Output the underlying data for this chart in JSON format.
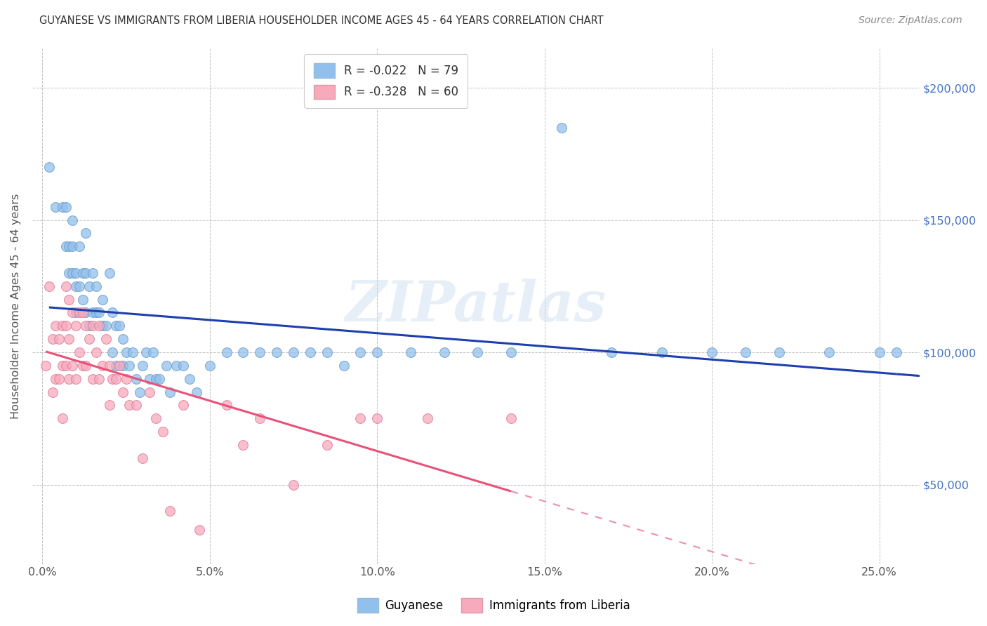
{
  "title": "GUYANESE VS IMMIGRANTS FROM LIBERIA HOUSEHOLDER INCOME AGES 45 - 64 YEARS CORRELATION CHART",
  "source": "Source: ZipAtlas.com",
  "ylabel": "Householder Income Ages 45 - 64 years",
  "xlabel_ticks": [
    "0.0%",
    "5.0%",
    "10.0%",
    "15.0%",
    "20.0%",
    "25.0%"
  ],
  "xlabel_vals": [
    0.0,
    0.05,
    0.1,
    0.15,
    0.2,
    0.25
  ],
  "right_ytick_labels": [
    "$50,000",
    "$100,000",
    "$150,000",
    "$200,000"
  ],
  "right_ytick_vals": [
    50000,
    100000,
    150000,
    200000
  ],
  "xlim": [
    -0.003,
    0.262
  ],
  "ylim": [
    20000,
    215000
  ],
  "blue_R": "-0.022",
  "blue_N": "79",
  "pink_R": "-0.328",
  "pink_N": "60",
  "blue_color": "#92C0EC",
  "pink_color": "#F7AABB",
  "blue_line_color": "#1E3FAE",
  "pink_line_color": "#E8527A",
  "watermark": "ZIPatlas",
  "blue_points_x": [
    0.002,
    0.004,
    0.006,
    0.007,
    0.007,
    0.008,
    0.008,
    0.009,
    0.009,
    0.009,
    0.01,
    0.01,
    0.01,
    0.011,
    0.011,
    0.012,
    0.012,
    0.013,
    0.013,
    0.013,
    0.014,
    0.014,
    0.015,
    0.015,
    0.016,
    0.016,
    0.017,
    0.018,
    0.018,
    0.019,
    0.02,
    0.021,
    0.021,
    0.022,
    0.022,
    0.023,
    0.024,
    0.024,
    0.025,
    0.026,
    0.027,
    0.028,
    0.029,
    0.03,
    0.031,
    0.032,
    0.033,
    0.034,
    0.035,
    0.037,
    0.038,
    0.04,
    0.042,
    0.044,
    0.046,
    0.05,
    0.055,
    0.06,
    0.065,
    0.07,
    0.075,
    0.08,
    0.085,
    0.09,
    0.095,
    0.1,
    0.11,
    0.12,
    0.13,
    0.14,
    0.155,
    0.17,
    0.185,
    0.2,
    0.21,
    0.22,
    0.235,
    0.25,
    0.255
  ],
  "blue_points_y": [
    170000,
    155000,
    155000,
    155000,
    140000,
    140000,
    130000,
    150000,
    140000,
    130000,
    130000,
    125000,
    115000,
    140000,
    125000,
    130000,
    120000,
    145000,
    130000,
    115000,
    125000,
    110000,
    130000,
    115000,
    125000,
    115000,
    115000,
    120000,
    110000,
    110000,
    130000,
    115000,
    100000,
    110000,
    95000,
    110000,
    105000,
    95000,
    100000,
    95000,
    100000,
    90000,
    85000,
    95000,
    100000,
    90000,
    100000,
    90000,
    90000,
    95000,
    85000,
    95000,
    95000,
    90000,
    85000,
    95000,
    100000,
    100000,
    100000,
    100000,
    100000,
    100000,
    100000,
    95000,
    100000,
    100000,
    100000,
    100000,
    100000,
    100000,
    185000,
    100000,
    100000,
    100000,
    100000,
    100000,
    100000,
    100000,
    100000
  ],
  "pink_points_x": [
    0.001,
    0.002,
    0.003,
    0.003,
    0.004,
    0.004,
    0.005,
    0.005,
    0.006,
    0.006,
    0.006,
    0.007,
    0.007,
    0.007,
    0.008,
    0.008,
    0.008,
    0.009,
    0.009,
    0.01,
    0.01,
    0.011,
    0.011,
    0.012,
    0.012,
    0.013,
    0.013,
    0.014,
    0.015,
    0.015,
    0.016,
    0.017,
    0.017,
    0.018,
    0.019,
    0.02,
    0.02,
    0.021,
    0.022,
    0.023,
    0.024,
    0.025,
    0.026,
    0.028,
    0.03,
    0.032,
    0.034,
    0.036,
    0.038,
    0.042,
    0.047,
    0.055,
    0.06,
    0.065,
    0.075,
    0.085,
    0.095,
    0.1,
    0.115,
    0.14
  ],
  "pink_points_y": [
    95000,
    125000,
    105000,
    85000,
    110000,
    90000,
    105000,
    90000,
    110000,
    95000,
    75000,
    125000,
    110000,
    95000,
    120000,
    105000,
    90000,
    115000,
    95000,
    110000,
    90000,
    115000,
    100000,
    115000,
    95000,
    110000,
    95000,
    105000,
    110000,
    90000,
    100000,
    110000,
    90000,
    95000,
    105000,
    95000,
    80000,
    90000,
    90000,
    95000,
    85000,
    90000,
    80000,
    80000,
    60000,
    85000,
    75000,
    70000,
    40000,
    80000,
    33000,
    80000,
    65000,
    75000,
    50000,
    65000,
    75000,
    75000,
    75000,
    75000
  ]
}
